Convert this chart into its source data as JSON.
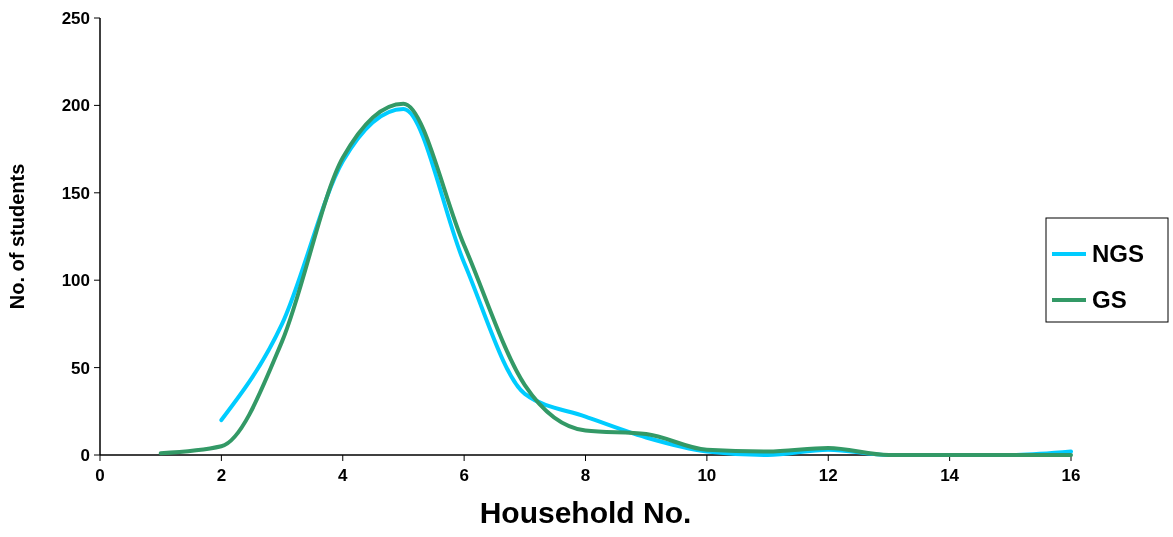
{
  "chart_data": {
    "type": "line",
    "xlabel": "Household No.",
    "ylabel": "No. of students",
    "xlim": [
      0,
      16
    ],
    "xticks": [
      0,
      2,
      4,
      6,
      8,
      10,
      12,
      14,
      16
    ],
    "ylim": [
      0,
      250
    ],
    "yticks": [
      0,
      50,
      100,
      150,
      200,
      250
    ],
    "grid": false,
    "legend": "right",
    "line_style": "solid",
    "series": [
      {
        "name": "NGS",
        "color": "#00ccff",
        "x": [
          2,
          3,
          4,
          5,
          6,
          7,
          8,
          9,
          10,
          11,
          12,
          13,
          14,
          15,
          16
        ],
        "values": [
          20,
          75,
          168,
          198,
          110,
          35,
          22,
          10,
          2,
          0,
          3,
          0,
          0,
          0,
          2
        ]
      },
      {
        "name": "GS",
        "color": "#339966",
        "x": [
          1,
          2,
          3,
          4,
          5,
          6,
          7,
          8,
          9,
          10,
          11,
          12,
          13,
          14,
          15,
          16
        ],
        "values": [
          1,
          5,
          65,
          170,
          201,
          120,
          40,
          14,
          12,
          3,
          2,
          4,
          0,
          0,
          0,
          0
        ]
      }
    ]
  }
}
